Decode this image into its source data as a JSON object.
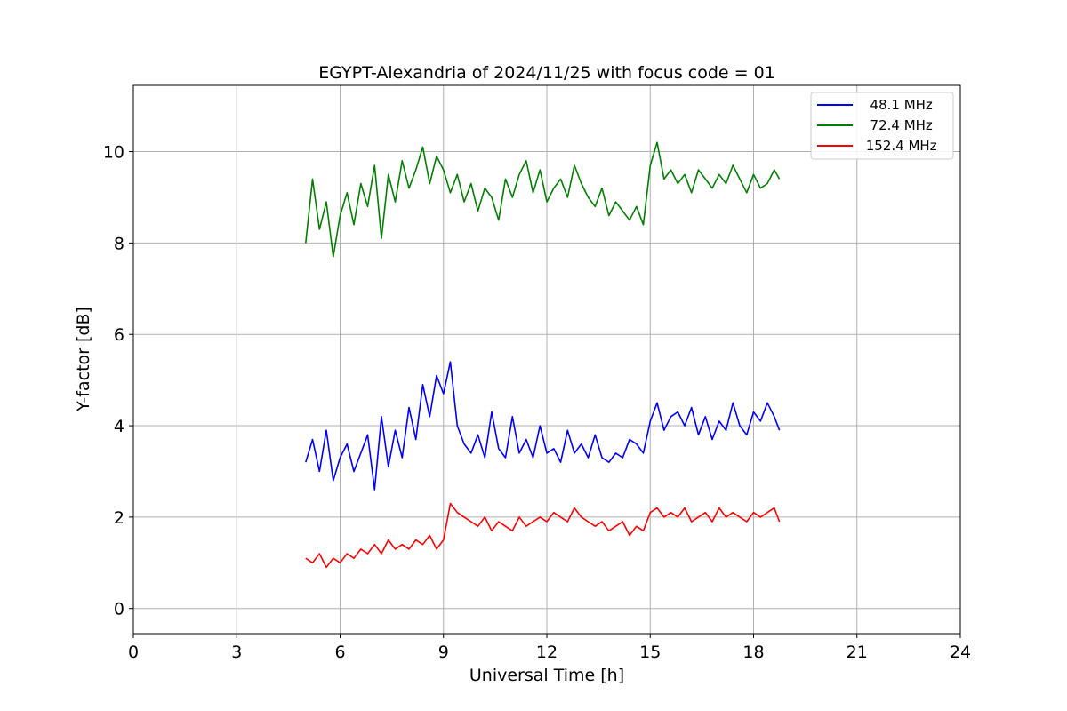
{
  "chart_data": {
    "type": "line",
    "title": "EGYPT-Alexandria of 2024/11/25 with focus code = 01",
    "xlabel": "Universal Time [h]",
    "ylabel": "Y-factor [dB]",
    "xlim": [
      0,
      24
    ],
    "ylim": [
      -0.55,
      11.45
    ],
    "xticks": [
      0,
      3,
      6,
      9,
      12,
      15,
      18,
      21,
      24
    ],
    "yticks": [
      0,
      2,
      4,
      6,
      8,
      10
    ],
    "grid": true,
    "legend_position": "top-right",
    "series": [
      {
        "name": "  48.1 MHz",
        "color": "#0000ff",
        "x": [
          5.0,
          5.2,
          5.4,
          5.6,
          5.8,
          6.0,
          6.2,
          6.4,
          6.6,
          6.8,
          7.0,
          7.2,
          7.4,
          7.6,
          7.8,
          8.0,
          8.2,
          8.4,
          8.6,
          8.8,
          9.0,
          9.2,
          9.4,
          9.6,
          9.8,
          10.0,
          10.2,
          10.4,
          10.6,
          10.8,
          11.0,
          11.2,
          11.4,
          11.6,
          11.8,
          12.0,
          12.2,
          12.4,
          12.6,
          12.8,
          13.0,
          13.2,
          13.4,
          13.6,
          13.8,
          14.0,
          14.2,
          14.4,
          14.6,
          14.8,
          15.0,
          15.2,
          15.4,
          15.6,
          15.8,
          16.0,
          16.2,
          16.4,
          16.6,
          16.8,
          17.0,
          17.2,
          17.4,
          17.6,
          17.8,
          18.0,
          18.2,
          18.4,
          18.6,
          18.75
        ],
        "y": [
          3.2,
          3.7,
          3.0,
          3.9,
          2.8,
          3.3,
          3.6,
          3.0,
          3.4,
          3.8,
          2.6,
          4.2,
          3.1,
          3.9,
          3.3,
          4.4,
          3.7,
          4.9,
          4.2,
          5.1,
          4.7,
          5.4,
          4.0,
          3.6,
          3.4,
          3.8,
          3.3,
          4.3,
          3.5,
          3.3,
          4.2,
          3.4,
          3.7,
          3.3,
          4.0,
          3.4,
          3.5,
          3.2,
          3.9,
          3.4,
          3.6,
          3.3,
          3.8,
          3.3,
          3.2,
          3.4,
          3.3,
          3.7,
          3.6,
          3.4,
          4.1,
          4.5,
          3.9,
          4.2,
          4.3,
          4.0,
          4.4,
          3.8,
          4.2,
          3.7,
          4.1,
          3.9,
          4.5,
          4.0,
          3.8,
          4.3,
          4.1,
          4.5,
          4.2,
          3.9
        ]
      },
      {
        "name": "  72.4 MHz",
        "color": "#008000",
        "x": [
          5.0,
          5.2,
          5.4,
          5.6,
          5.8,
          6.0,
          6.2,
          6.4,
          6.6,
          6.8,
          7.0,
          7.2,
          7.4,
          7.6,
          7.8,
          8.0,
          8.2,
          8.4,
          8.6,
          8.8,
          9.0,
          9.2,
          9.4,
          9.6,
          9.8,
          10.0,
          10.2,
          10.4,
          10.6,
          10.8,
          11.0,
          11.2,
          11.4,
          11.6,
          11.8,
          12.0,
          12.2,
          12.4,
          12.6,
          12.8,
          13.0,
          13.2,
          13.4,
          13.6,
          13.8,
          14.0,
          14.2,
          14.4,
          14.6,
          14.8,
          15.0,
          15.2,
          15.4,
          15.6,
          15.8,
          16.0,
          16.2,
          16.4,
          16.6,
          16.8,
          17.0,
          17.2,
          17.4,
          17.6,
          17.8,
          18.0,
          18.2,
          18.4,
          18.6,
          18.75
        ],
        "y": [
          8.0,
          9.4,
          8.3,
          8.9,
          7.7,
          8.6,
          9.1,
          8.4,
          9.3,
          8.8,
          9.7,
          8.1,
          9.5,
          8.9,
          9.8,
          9.2,
          9.6,
          10.1,
          9.3,
          9.9,
          9.6,
          9.1,
          9.5,
          8.9,
          9.3,
          8.7,
          9.2,
          9.0,
          8.5,
          9.4,
          9.0,
          9.5,
          9.8,
          9.1,
          9.6,
          8.9,
          9.2,
          9.4,
          9.0,
          9.7,
          9.3,
          9.0,
          8.8,
          9.2,
          8.6,
          8.9,
          8.7,
          8.5,
          8.8,
          8.4,
          9.7,
          10.2,
          9.4,
          9.6,
          9.3,
          9.5,
          9.1,
          9.6,
          9.4,
          9.2,
          9.5,
          9.3,
          9.7,
          9.4,
          9.1,
          9.5,
          9.2,
          9.3,
          9.6,
          9.4
        ]
      },
      {
        "name": " 152.4 MHz",
        "color": "#ff0000",
        "x": [
          5.0,
          5.2,
          5.4,
          5.6,
          5.8,
          6.0,
          6.2,
          6.4,
          6.6,
          6.8,
          7.0,
          7.2,
          7.4,
          7.6,
          7.8,
          8.0,
          8.2,
          8.4,
          8.6,
          8.8,
          9.0,
          9.2,
          9.4,
          9.6,
          9.8,
          10.0,
          10.2,
          10.4,
          10.6,
          10.8,
          11.0,
          11.2,
          11.4,
          11.6,
          11.8,
          12.0,
          12.2,
          12.4,
          12.6,
          12.8,
          13.0,
          13.2,
          13.4,
          13.6,
          13.8,
          14.0,
          14.2,
          14.4,
          14.6,
          14.8,
          15.0,
          15.2,
          15.4,
          15.6,
          15.8,
          16.0,
          16.2,
          16.4,
          16.6,
          16.8,
          17.0,
          17.2,
          17.4,
          17.6,
          17.8,
          18.0,
          18.2,
          18.4,
          18.6,
          18.75
        ],
        "y": [
          1.1,
          1.0,
          1.2,
          0.9,
          1.1,
          1.0,
          1.2,
          1.1,
          1.3,
          1.2,
          1.4,
          1.2,
          1.5,
          1.3,
          1.4,
          1.3,
          1.5,
          1.4,
          1.6,
          1.3,
          1.5,
          2.3,
          2.1,
          2.0,
          1.9,
          1.8,
          2.0,
          1.7,
          1.9,
          1.8,
          1.7,
          2.0,
          1.8,
          1.9,
          2.0,
          1.9,
          2.1,
          2.0,
          1.9,
          2.2,
          2.0,
          1.9,
          1.8,
          1.9,
          1.7,
          1.8,
          1.9,
          1.6,
          1.8,
          1.7,
          2.1,
          2.2,
          2.0,
          2.1,
          2.0,
          2.2,
          1.9,
          2.0,
          2.1,
          1.9,
          2.2,
          2.0,
          2.1,
          2.0,
          1.9,
          2.1,
          2.0,
          2.1,
          2.2,
          1.9
        ]
      }
    ]
  }
}
